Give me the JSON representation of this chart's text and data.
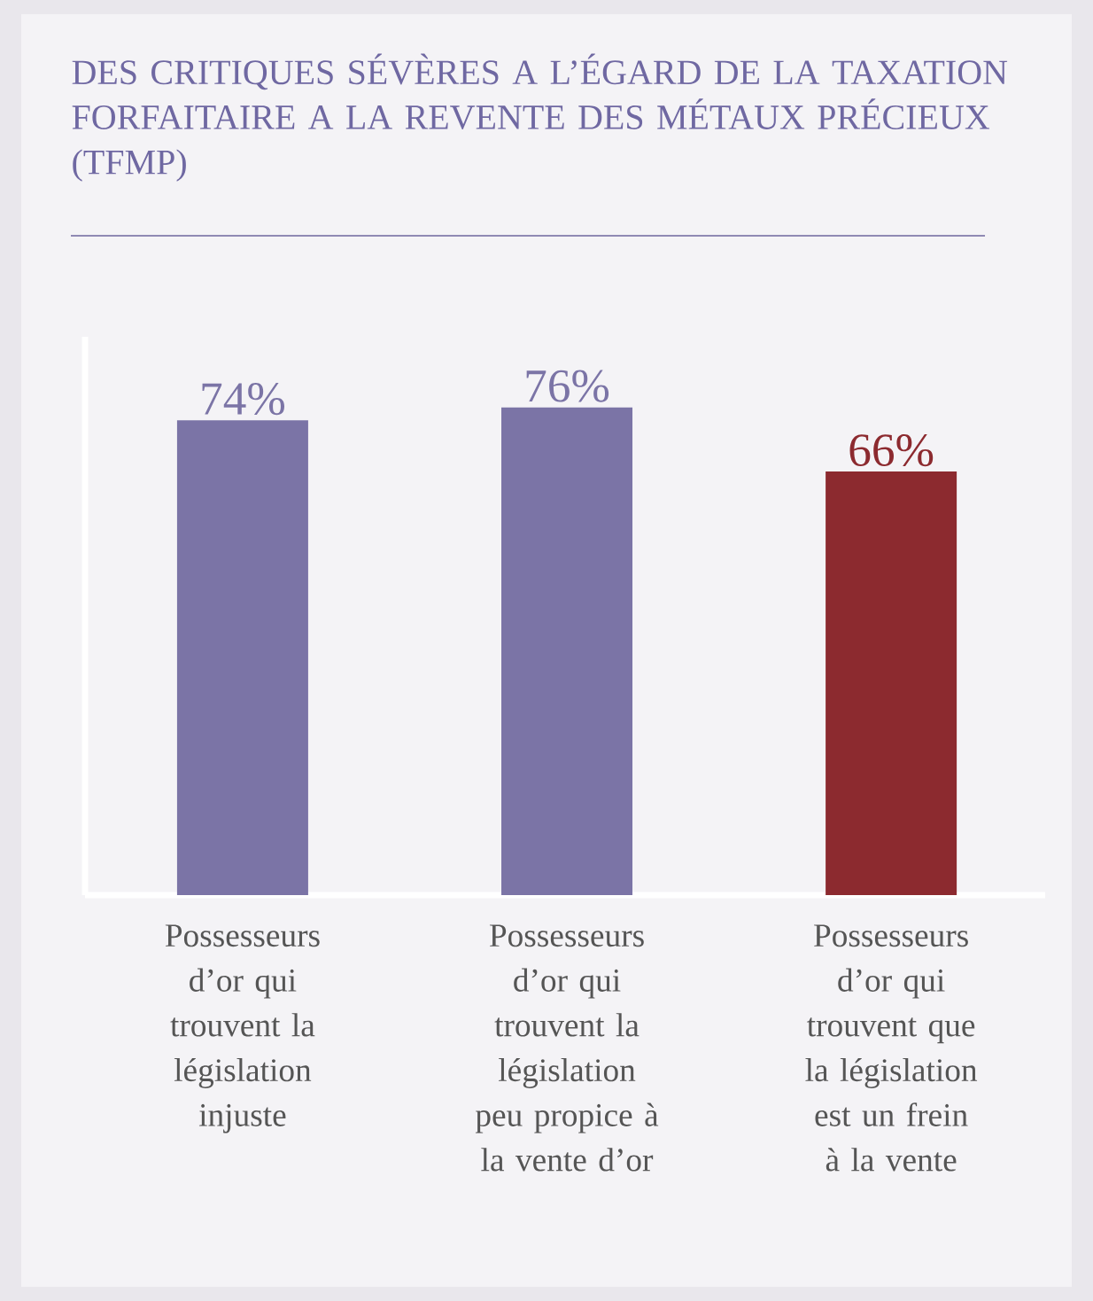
{
  "chart_data": {
    "type": "bar",
    "title": "DES CRITIQUES SÉVÈRES A L’ÉGARD DE LA TAXATION FORFAITAIRE A LA REVENTE DES MÉTAUX PRÉCIEUX (TFMP)",
    "categories": [
      "Possesseurs d’or qui trouvent la législation injuste",
      "Possesseurs d’or qui trouvent la législation peu propice à la vente d’or",
      "Possesseurs d’or qui trouvent que la législation est un frein à la vente"
    ],
    "values": [
      74,
      76,
      66
    ],
    "colors": [
      "#7b74a6",
      "#7b74a6",
      "#8c2a2f"
    ],
    "value_labels": [
      "74%",
      "76%",
      "66%"
    ],
    "ylim": [
      0,
      87
    ],
    "tick_labels": "x"
  }
}
